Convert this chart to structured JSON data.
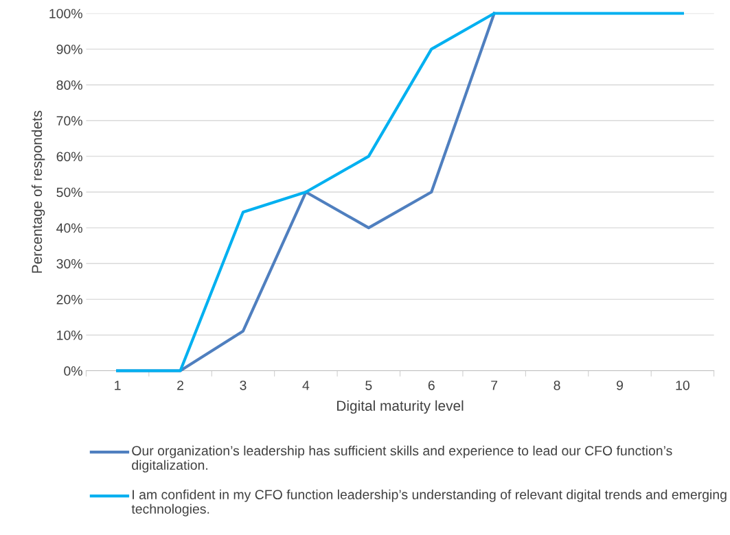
{
  "chart_data": {
    "type": "line",
    "xlabel": "Digital maturity level",
    "ylabel": "Percentage of respondets",
    "categories": [
      "1",
      "2",
      "3",
      "4",
      "5",
      "6",
      "7",
      "8",
      "9",
      "10"
    ],
    "series": [
      {
        "name": "Our organization’s leadership has sufficient skills and experience to lead our CFO function’s digitalization.",
        "color": "#4f7fbf",
        "values": [
          0,
          0,
          11.1,
          50,
          40,
          50,
          100,
          null,
          null,
          null
        ]
      },
      {
        "name": "I am confident in my CFO function leadership’s understanding of relevant digital trends and emerging technologies.",
        "color": "#00b0f0",
        "values": [
          0,
          0,
          44.4,
          50,
          60,
          90,
          100,
          100,
          100,
          100
        ]
      }
    ],
    "ylim": [
      0,
      100
    ],
    "yticks": [
      {
        "value": 0,
        "label": "0%"
      },
      {
        "value": 10,
        "label": "10%"
      },
      {
        "value": 20,
        "label": "20%"
      },
      {
        "value": 30,
        "label": "30%"
      },
      {
        "value": 40,
        "label": "40%"
      },
      {
        "value": 50,
        "label": "50%"
      },
      {
        "value": 60,
        "label": "60%"
      },
      {
        "value": 70,
        "label": "70%"
      },
      {
        "value": 80,
        "label": "80%"
      },
      {
        "value": 90,
        "label": "90%"
      },
      {
        "value": 100,
        "label": "100%"
      }
    ],
    "grid": "y",
    "legend": "bottom",
    "marker": "none",
    "line_style": "solid"
  }
}
